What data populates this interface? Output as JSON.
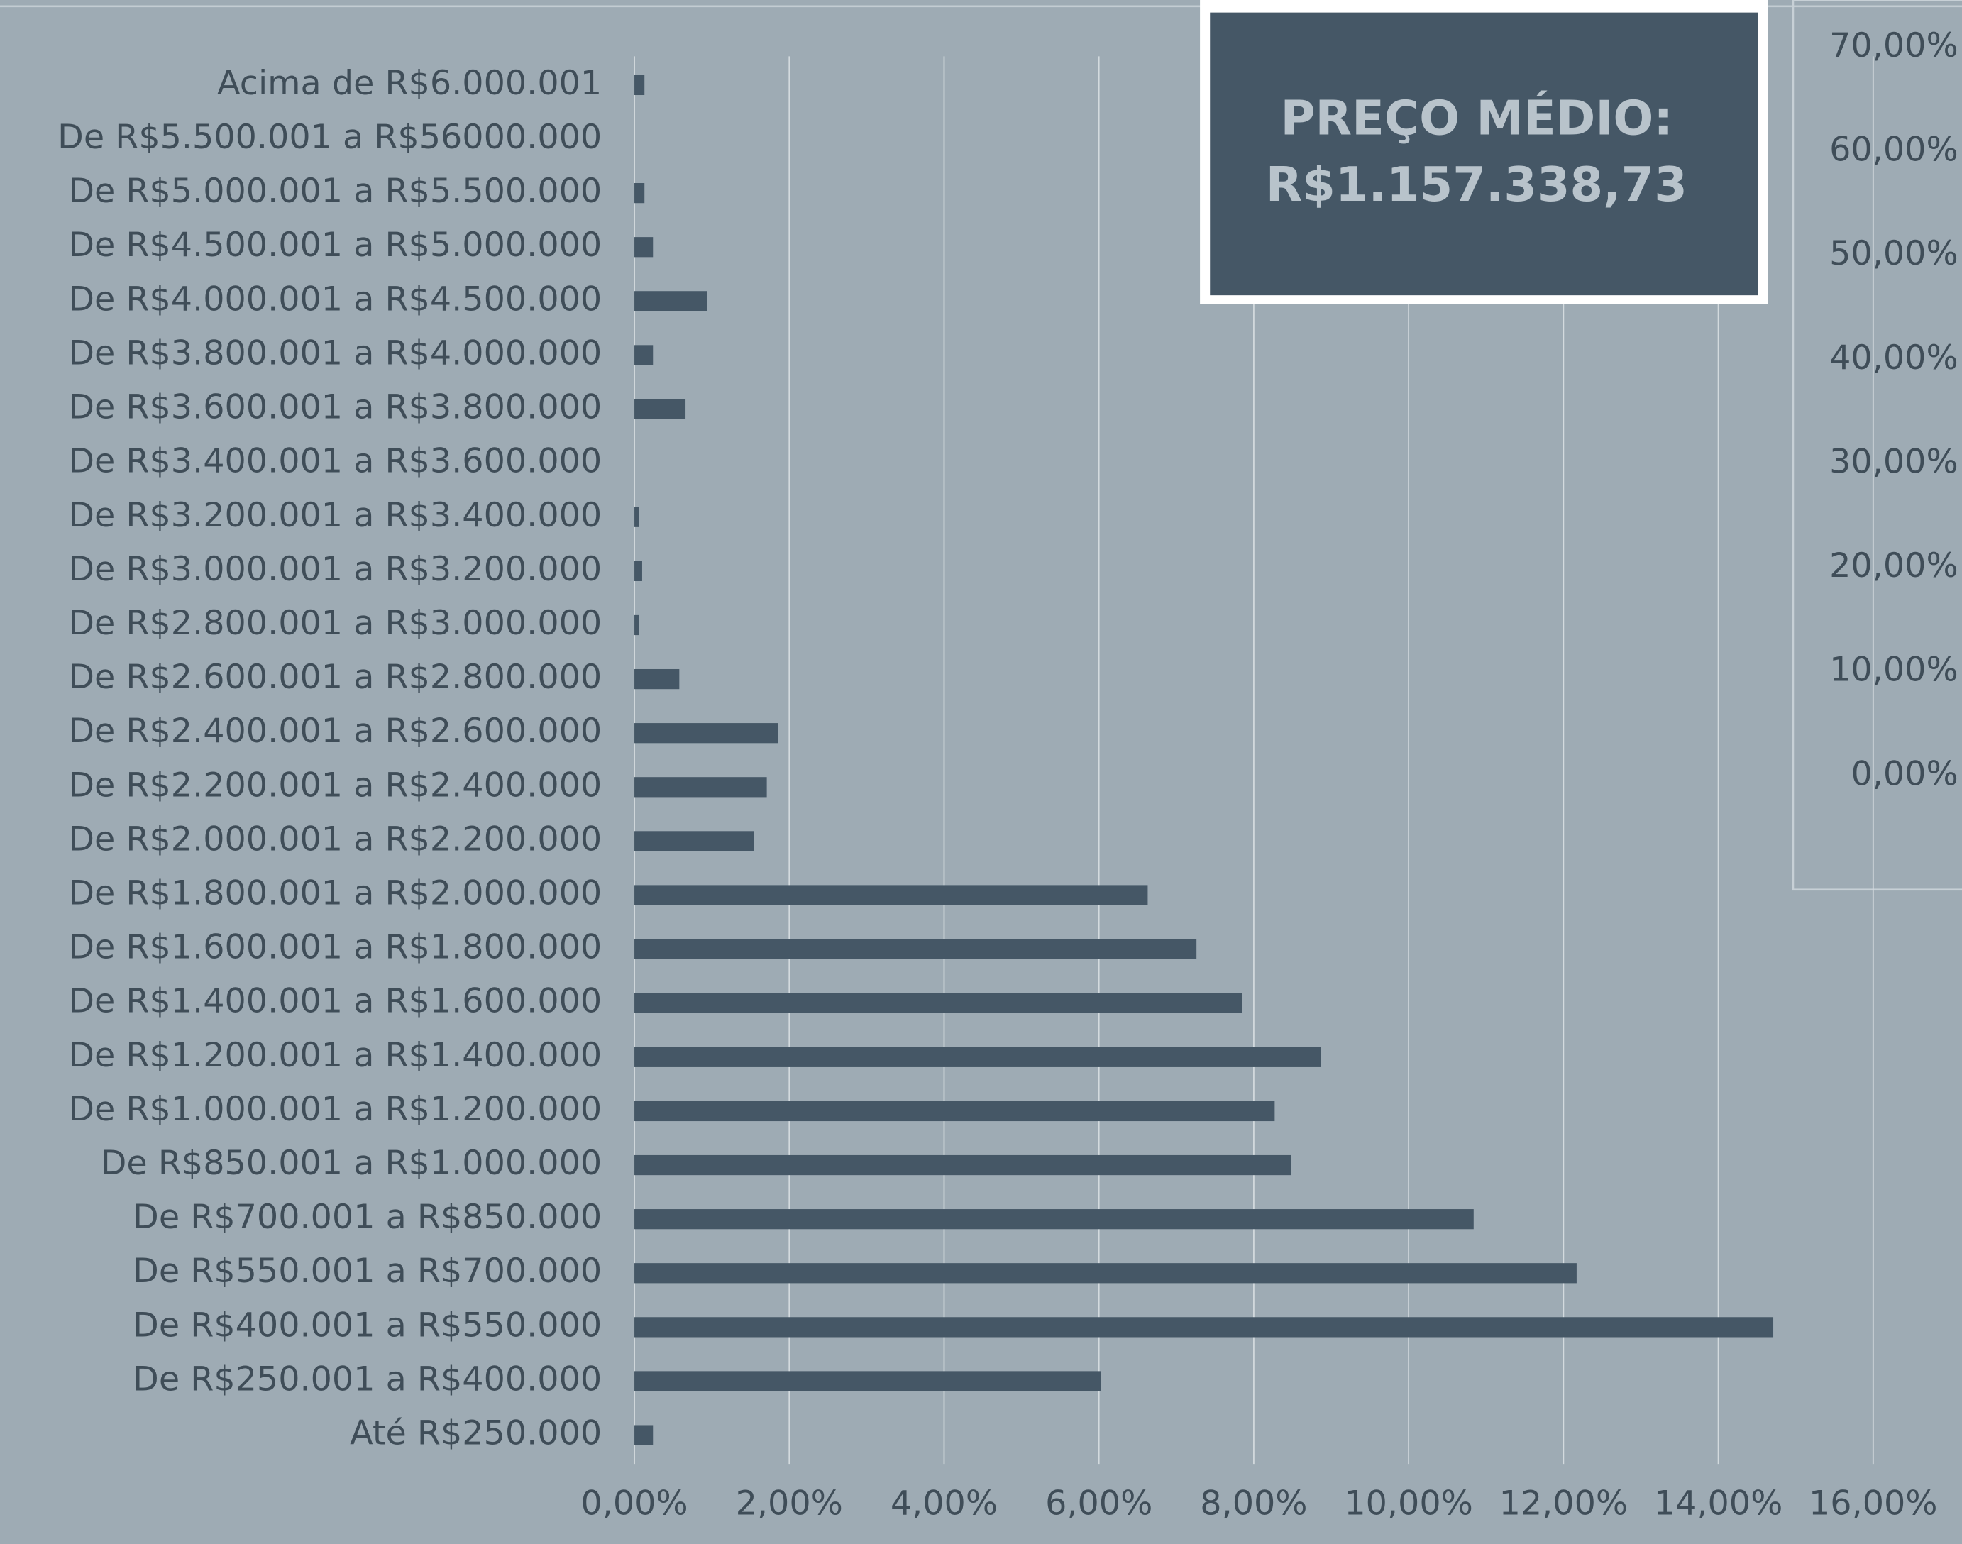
{
  "chart_data": {
    "type": "bar",
    "orientation": "horizontal",
    "categories": [
      "Acima de R$6.000.001",
      "De R$5.500.001 a R$56000.000",
      "De R$5.000.001 a R$5.500.000",
      "De R$4.500.001 a R$5.000.000",
      "De R$4.000.001 a R$4.500.000",
      "De R$3.800.001 a R$4.000.000",
      "De R$3.600.001 a R$3.800.000",
      "De R$3.400.001 a R$3.600.000",
      "De R$3.200.001 a R$3.400.000",
      "De R$3.000.001 a R$3.200.000",
      "De R$2.800.001 a R$3.000.000",
      "De R$2.600.001 a R$2.800.000",
      "De R$2.400.001 a R$2.600.000",
      "De R$2.200.001 a R$2.400.000",
      "De R$2.000.001 a R$2.200.000",
      "De R$1.800.001 a R$2.000.000",
      "De R$1.600.001 a R$1.800.000",
      "De R$1.400.001 a R$1.600.000",
      "De R$1.200.001 a R$1.400.000",
      "De R$1.000.001 a R$1.200.000",
      "De R$850.001 a R$1.000.000",
      "De R$700.001 a R$850.000",
      "De R$550.001 a R$700.000",
      "De R$400.001 a R$550.000",
      "De R$250.001 a R$400.000",
      "Até R$250.000"
    ],
    "values": [
      0.13,
      0,
      0.13,
      0.24,
      0.94,
      0.24,
      0.66,
      0,
      0.06,
      0.1,
      0.06,
      0.58,
      1.86,
      1.71,
      1.54,
      6.63,
      7.26,
      7.85,
      8.87,
      8.27,
      8.48,
      10.84,
      12.17,
      14.71,
      6.03,
      0.24
    ],
    "color": "#455766",
    "xlim": [
      0,
      16
    ],
    "xticks": [
      {
        "value": 0,
        "label": "0,00%"
      },
      {
        "value": 2,
        "label": "2,00%"
      },
      {
        "value": 4,
        "label": "4,00%"
      },
      {
        "value": 6,
        "label": "6,00%"
      },
      {
        "value": 8,
        "label": "8,00%"
      },
      {
        "value": 10,
        "label": "10,00%"
      },
      {
        "value": 12,
        "label": "12,00%"
      },
      {
        "value": 14,
        "label": "14,00%"
      },
      {
        "value": 16,
        "label": "16,00%"
      }
    ],
    "y2lim": [
      0,
      70
    ],
    "y2ticks": [
      {
        "value": 70,
        "label": "70,00%"
      },
      {
        "value": 60,
        "label": "60,00%"
      },
      {
        "value": 50,
        "label": "50,00%"
      },
      {
        "value": 40,
        "label": "40,00%"
      },
      {
        "value": 30,
        "label": "30,00%"
      },
      {
        "value": 20,
        "label": "20,00%"
      },
      {
        "value": 10,
        "label": "10,00%"
      },
      {
        "value": 0,
        "label": "0,00%"
      }
    ],
    "grid": true,
    "annotation": [
      "PREÇO MÉDIO:",
      "R$1.157.338,73"
    ]
  }
}
